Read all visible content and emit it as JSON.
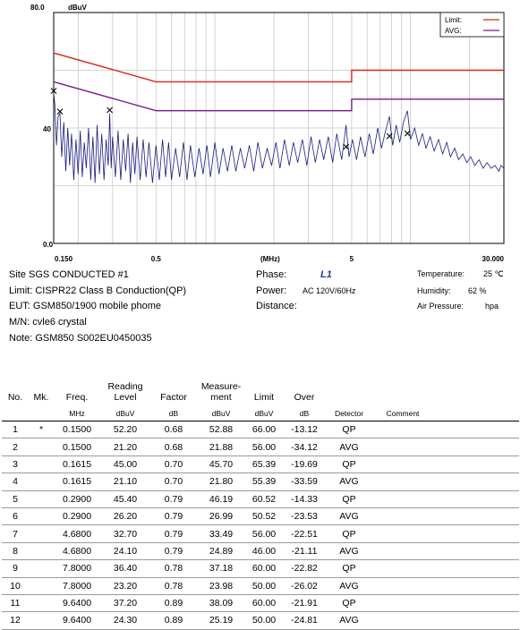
{
  "chart_data": {
    "type": "line",
    "y_top_label": "80.0",
    "y_unit": "dBuV",
    "y_mid_label": "40",
    "y_bottom_label": "0.0",
    "ylim": [
      0,
      80
    ],
    "x_scale": "log",
    "xlim": [
      0.15,
      30
    ],
    "x_unit": "(MHz)",
    "x_tick_labels": [
      {
        "value": 0.15,
        "label": "0.150"
      },
      {
        "value": 0.5,
        "label": "0.5"
      },
      {
        "value": 5,
        "label": "5"
      },
      {
        "value": 30,
        "label": "30.000"
      }
    ],
    "x_gridlines": [
      0.15,
      0.2,
      0.3,
      0.4,
      0.5,
      0.6,
      0.7,
      0.8,
      0.9,
      1,
      2,
      3,
      4,
      5,
      6,
      7,
      8,
      9,
      10,
      20,
      30
    ],
    "legend": [
      {
        "name": "Limit:",
        "color": "#e0201a"
      },
      {
        "name": "AVG:",
        "color": "#7a1a8c"
      }
    ],
    "legend_position": "top-right",
    "series": [
      {
        "name": "Limit:",
        "color": "#e0201a",
        "points": [
          [
            0.15,
            66
          ],
          [
            0.5,
            56
          ],
          [
            5,
            56
          ],
          [
            5,
            60
          ],
          [
            30,
            60
          ]
        ]
      },
      {
        "name": "AVG:",
        "color": "#7a1a8c",
        "points": [
          [
            0.15,
            56
          ],
          [
            0.5,
            46
          ],
          [
            5,
            46
          ],
          [
            5,
            50
          ],
          [
            30,
            50
          ]
        ]
      },
      {
        "name": "",
        "color": "#1a1a80",
        "points": [
          [
            0.15,
            52
          ],
          [
            0.152,
            48
          ],
          [
            0.155,
            34
          ],
          [
            0.158,
            44
          ],
          [
            0.1615,
            45
          ],
          [
            0.165,
            30
          ],
          [
            0.169,
            42
          ],
          [
            0.173,
            25
          ],
          [
            0.177,
            40
          ],
          [
            0.181,
            27
          ],
          [
            0.185,
            38
          ],
          [
            0.19,
            22
          ],
          [
            0.195,
            36
          ],
          [
            0.2,
            24
          ],
          [
            0.205,
            39
          ],
          [
            0.21,
            23
          ],
          [
            0.215,
            35
          ],
          [
            0.22,
            26
          ],
          [
            0.226,
            40
          ],
          [
            0.232,
            22
          ],
          [
            0.238,
            37
          ],
          [
            0.244,
            21
          ],
          [
            0.25,
            41
          ],
          [
            0.257,
            24
          ],
          [
            0.264,
            38
          ],
          [
            0.271,
            22
          ],
          [
            0.278,
            36
          ],
          [
            0.285,
            27
          ],
          [
            0.29,
            45
          ],
          [
            0.295,
            26
          ],
          [
            0.3,
            37
          ],
          [
            0.31,
            23
          ],
          [
            0.32,
            39
          ],
          [
            0.33,
            22
          ],
          [
            0.34,
            36
          ],
          [
            0.35,
            25
          ],
          [
            0.36,
            38
          ],
          [
            0.37,
            21
          ],
          [
            0.38,
            35
          ],
          [
            0.39,
            24
          ],
          [
            0.4,
            37
          ],
          [
            0.415,
            22
          ],
          [
            0.43,
            36
          ],
          [
            0.445,
            23
          ],
          [
            0.46,
            35
          ],
          [
            0.48,
            21
          ],
          [
            0.5,
            34
          ],
          [
            0.52,
            22
          ],
          [
            0.54,
            36
          ],
          [
            0.56,
            23
          ],
          [
            0.58,
            35
          ],
          [
            0.6,
            22
          ],
          [
            0.63,
            33
          ],
          [
            0.66,
            23
          ],
          [
            0.69,
            35
          ],
          [
            0.72,
            22
          ],
          [
            0.75,
            34
          ],
          [
            0.79,
            23
          ],
          [
            0.83,
            33
          ],
          [
            0.87,
            24
          ],
          [
            0.91,
            34
          ],
          [
            0.95,
            23
          ],
          [
            1.0,
            35
          ],
          [
            1.05,
            24
          ],
          [
            1.1,
            33
          ],
          [
            1.16,
            25
          ],
          [
            1.22,
            34
          ],
          [
            1.28,
            25
          ],
          [
            1.35,
            33
          ],
          [
            1.42,
            26
          ],
          [
            1.5,
            34
          ],
          [
            1.58,
            25
          ],
          [
            1.66,
            35
          ],
          [
            1.75,
            26
          ],
          [
            1.85,
            33
          ],
          [
            1.95,
            27
          ],
          [
            2.05,
            35
          ],
          [
            2.15,
            26
          ],
          [
            2.27,
            36
          ],
          [
            2.4,
            27
          ],
          [
            2.52,
            35
          ],
          [
            2.65,
            28
          ],
          [
            2.8,
            36
          ],
          [
            2.95,
            27
          ],
          [
            3.1,
            37
          ],
          [
            3.26,
            28
          ],
          [
            3.43,
            36
          ],
          [
            3.6,
            29
          ],
          [
            3.8,
            37
          ],
          [
            4.0,
            28
          ],
          [
            4.2,
            38
          ],
          [
            4.45,
            29
          ],
          [
            4.68,
            41
          ],
          [
            4.85,
            30
          ],
          [
            5.05,
            36
          ],
          [
            5.3,
            29
          ],
          [
            5.55,
            37
          ],
          [
            5.85,
            30
          ],
          [
            6.15,
            38
          ],
          [
            6.45,
            31
          ],
          [
            6.8,
            40
          ],
          [
            7.1,
            33
          ],
          [
            7.45,
            39
          ],
          [
            7.8,
            44
          ],
          [
            8.1,
            34
          ],
          [
            8.45,
            41
          ],
          [
            8.8,
            35
          ],
          [
            9.2,
            42
          ],
          [
            9.64,
            46
          ],
          [
            10.0,
            36
          ],
          [
            10.5,
            40
          ],
          [
            11.0,
            34
          ],
          [
            11.5,
            38
          ],
          [
            12.0,
            33
          ],
          [
            12.6,
            37
          ],
          [
            13.2,
            32
          ],
          [
            13.9,
            36
          ],
          [
            14.6,
            31
          ],
          [
            15.3,
            35
          ],
          [
            16.0,
            30
          ],
          [
            16.8,
            33
          ],
          [
            17.6,
            29
          ],
          [
            18.5,
            31
          ],
          [
            19.4,
            28
          ],
          [
            20.3,
            30
          ],
          [
            21.3,
            27
          ],
          [
            22.4,
            29
          ],
          [
            23.5,
            26
          ],
          [
            24.6,
            28
          ],
          [
            25.8,
            26
          ],
          [
            27.0,
            27
          ],
          [
            28.3,
            25
          ],
          [
            29.0,
            27
          ],
          [
            30.0,
            26
          ]
        ]
      }
    ],
    "markers": [
      {
        "x": 0.15,
        "y": 52.88
      },
      {
        "x": 0.1615,
        "y": 45.7
      },
      {
        "x": 0.29,
        "y": 46.19
      },
      {
        "x": 4.68,
        "y": 33.49
      },
      {
        "x": 7.8,
        "y": 37.18
      },
      {
        "x": 9.64,
        "y": 38.09
      }
    ]
  },
  "info": {
    "site": "Site  SGS CONDUCTED #1",
    "limit": "Limit:  CISPR22 Class B Conduction(QP)",
    "eut": "EUT:  GSM850/1900 mobile phome",
    "mn": "M/N:   cvle6 crystal",
    "note": "Note:  GSM850 S002EU0450035",
    "phase_label": "Phase:",
    "phase_value": "L1",
    "power_label": "Power:",
    "power_value": "AC 120V/60Hz",
    "distance_label": "Distance:",
    "temperature_label": "Temperature:",
    "temperature_value": "25 ℃",
    "humidity_label": "Humidity:",
    "humidity_value": "62 %",
    "air_pressure_label": "Air Pressure:",
    "air_pressure_value": "hpa"
  },
  "table": {
    "headers": [
      "No.",
      "Mk.",
      "Freq.",
      "Reading\nLevel",
      "Factor",
      "Measure-\nment",
      "Limit",
      "Over",
      "",
      ""
    ],
    "units": [
      "",
      "",
      "MHz",
      "dBuV",
      "dB",
      "dBuV",
      "dBuV",
      "dB",
      "Detector",
      "Comment"
    ],
    "rows": [
      [
        "1",
        "*",
        "0.1500",
        "52.20",
        "0.68",
        "52.88",
        "66.00",
        "-13.12",
        "QP",
        ""
      ],
      [
        "2",
        "",
        "0.1500",
        "21.20",
        "0.68",
        "21.88",
        "56.00",
        "-34.12",
        "AVG",
        ""
      ],
      [
        "3",
        "",
        "0.1615",
        "45.00",
        "0.70",
        "45.70",
        "65.39",
        "-19.69",
        "QP",
        ""
      ],
      [
        "4",
        "",
        "0.1615",
        "21.10",
        "0.70",
        "21.80",
        "55.39",
        "-33.59",
        "AVG",
        ""
      ],
      [
        "5",
        "",
        "0.2900",
        "45.40",
        "0.79",
        "46.19",
        "60.52",
        "-14.33",
        "QP",
        ""
      ],
      [
        "6",
        "",
        "0.2900",
        "26.20",
        "0.79",
        "26.99",
        "50.52",
        "-23.53",
        "AVG",
        ""
      ],
      [
        "7",
        "",
        "4.6800",
        "32.70",
        "0.79",
        "33.49",
        "56.00",
        "-22.51",
        "QP",
        ""
      ],
      [
        "8",
        "",
        "4.6800",
        "24.10",
        "0.79",
        "24.89",
        "46.00",
        "-21.11",
        "AVG",
        ""
      ],
      [
        "9",
        "",
        "7.8000",
        "36.40",
        "0.78",
        "37.18",
        "60.00",
        "-22.82",
        "QP",
        ""
      ],
      [
        "10",
        "",
        "7.8000",
        "23.20",
        "0.78",
        "23.98",
        "50.00",
        "-26.02",
        "AVG",
        ""
      ],
      [
        "11",
        "",
        "9.6400",
        "37.20",
        "0.89",
        "38.09",
        "60.00",
        "-21.91",
        "QP",
        ""
      ],
      [
        "12",
        "",
        "9.6400",
        "24.30",
        "0.89",
        "25.19",
        "50.00",
        "-24.81",
        "AVG",
        ""
      ]
    ]
  }
}
